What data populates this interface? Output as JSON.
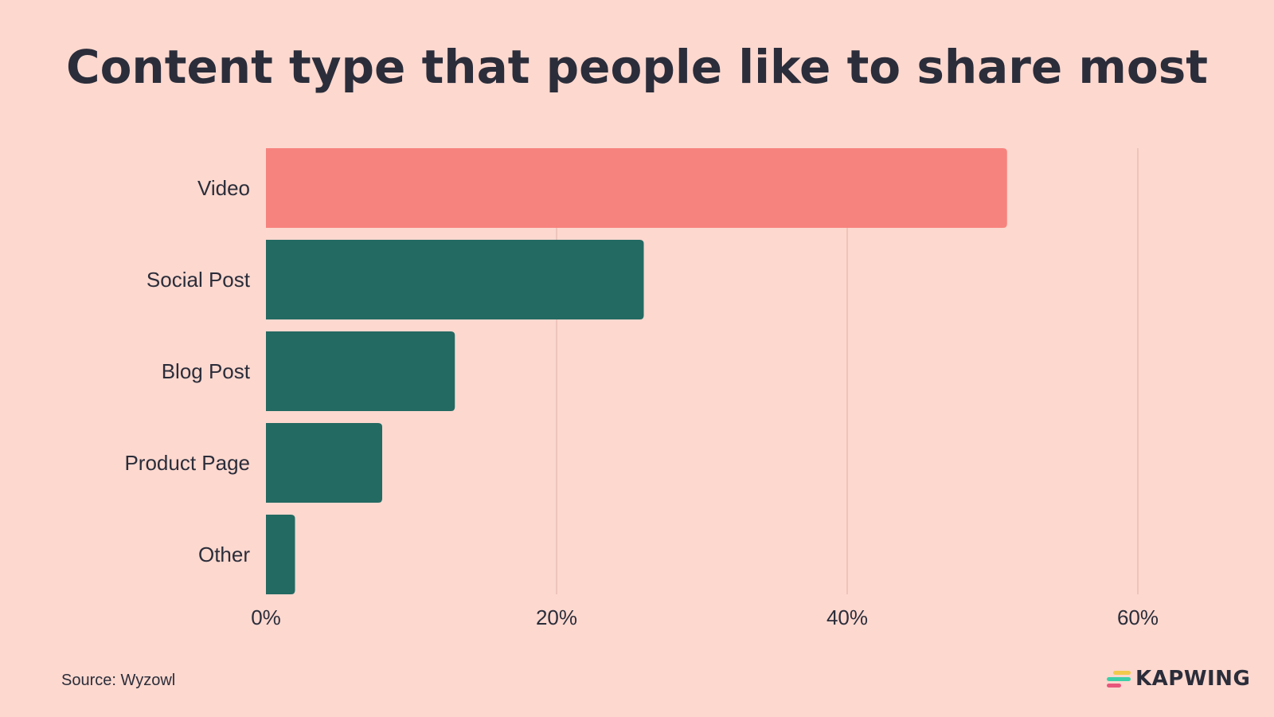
{
  "title": "Content type that people like to share most",
  "source": {
    "prefix": "Source:",
    "name": "Wyzowl"
  },
  "brand": {
    "name": "KAPWING",
    "logo_colors": [
      "#f2c94c",
      "#3ecfa8",
      "#e8567c"
    ]
  },
  "colors": {
    "highlight": "#f7837e",
    "default": "#236a62",
    "grid": "#e4b7ad",
    "background": "#fcd8cf",
    "text": "#2b2d3a"
  },
  "chart_data": {
    "type": "bar",
    "orientation": "horizontal",
    "title": "Content type that people like to share most",
    "categories": [
      "Video",
      "Social Post",
      "Blog Post",
      "Product Page",
      "Other"
    ],
    "values": [
      51,
      26,
      13,
      8,
      2
    ],
    "highlight_index": 0,
    "xlim": [
      0,
      60
    ],
    "xticks": [
      0,
      20,
      40,
      60
    ],
    "xtick_labels": [
      "0%",
      "20%",
      "40%",
      "60%"
    ],
    "xlabel": "",
    "ylabel": "",
    "grid": true,
    "legend": "none"
  }
}
